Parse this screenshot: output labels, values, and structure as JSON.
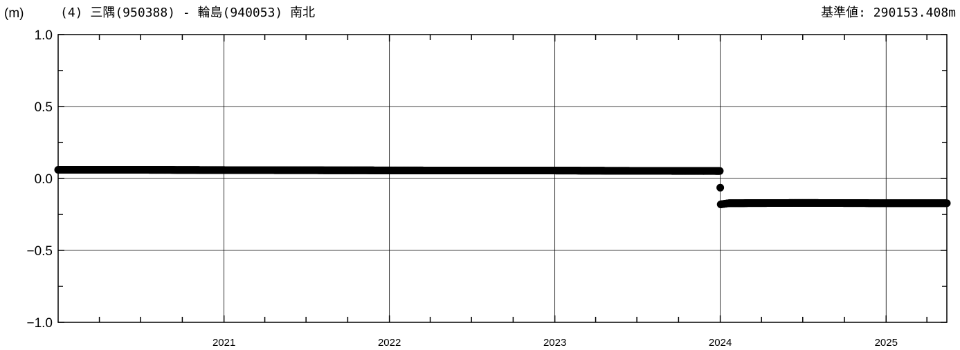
{
  "chart_data": {
    "type": "scatter",
    "unit_label": "(m)",
    "title": "(4) 三隅(950388) - 輪島(940053) 南北",
    "reference_label": "基準値: 290153.408m",
    "ylim": [
      -1.0,
      1.0
    ],
    "yticks": [
      -1.0,
      -0.5,
      0.0,
      0.5,
      1.0
    ],
    "ytick_labels": [
      "−1.0",
      "−0.5",
      "0.0",
      "0.5",
      "1.0"
    ],
    "xlim": [
      "2020-01-01",
      "2025-05-15"
    ],
    "xtick_labels": [
      "2021",
      "2022",
      "2023",
      "2024",
      "2025"
    ],
    "grid": true,
    "series": [
      {
        "color": "#000000",
        "points": [
          [
            "2020-01-01",
            0.06
          ],
          [
            "2020-07-01",
            0.06
          ],
          [
            "2021-01-01",
            0.058
          ],
          [
            "2021-07-01",
            0.057
          ],
          [
            "2022-01-01",
            0.056
          ],
          [
            "2022-07-01",
            0.055
          ],
          [
            "2023-01-01",
            0.055
          ],
          [
            "2023-07-01",
            0.053
          ],
          [
            "2023-12-31",
            0.052
          ],
          [
            "2024-01-02",
            -0.18
          ],
          [
            "2024-01-20",
            -0.172
          ],
          [
            "2024-07-01",
            -0.17
          ],
          [
            "2025-01-01",
            -0.172
          ],
          [
            "2025-05-15",
            -0.172
          ]
        ]
      }
    ]
  }
}
